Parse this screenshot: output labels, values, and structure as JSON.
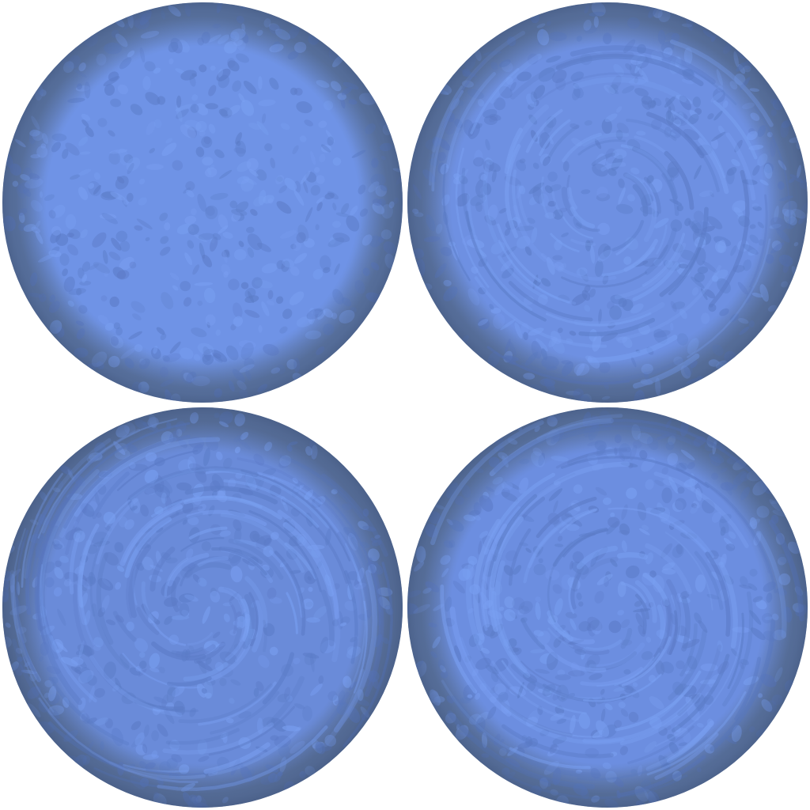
{
  "spheres": [
    {
      "id": "top-left",
      "base_color": "#6f93e6",
      "rim_color": "#5f79a8",
      "swirl": 0.0
    },
    {
      "id": "top-right",
      "base_color": "#6e90e2",
      "rim_color": "#5f78a6",
      "swirl": 0.55
    },
    {
      "id": "bottom-left",
      "base_color": "#6a8bd9",
      "rim_color": "#5c74a0",
      "swirl": 0.85
    },
    {
      "id": "bottom-right",
      "base_color": "#6c8ee0",
      "rim_color": "#5e77a4",
      "swirl": 0.7
    }
  ],
  "colors": {
    "background": "#ffffff",
    "dark_patch": "#5b7bc6",
    "light_streak": "#7aa0f2"
  }
}
